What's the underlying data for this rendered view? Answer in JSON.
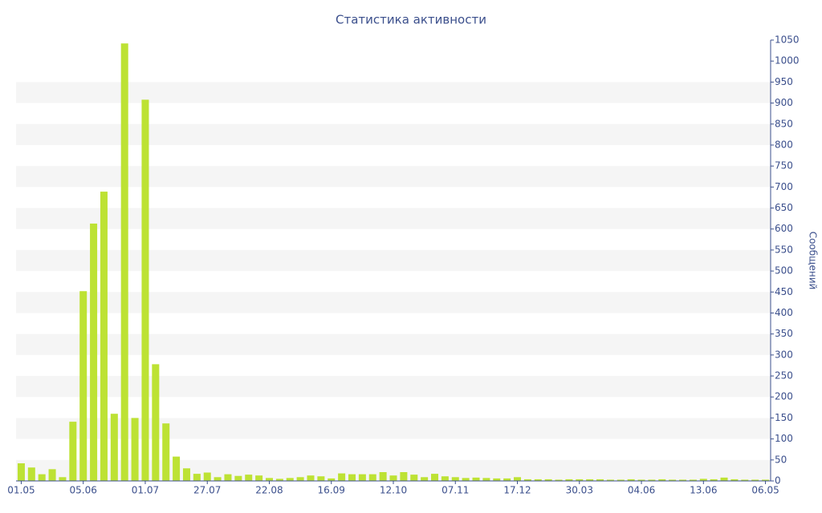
{
  "chart_data": {
    "type": "bar",
    "title": "Статистика активности",
    "y_label": "Сообщений",
    "categories": [
      "01.05",
      null,
      null,
      null,
      null,
      null,
      "05.06",
      null,
      null,
      null,
      null,
      null,
      "01.07",
      null,
      null,
      null,
      null,
      null,
      "27.07",
      null,
      null,
      null,
      null,
      null,
      "22.08",
      null,
      null,
      null,
      null,
      null,
      "16.09",
      null,
      null,
      null,
      null,
      null,
      "12.10",
      null,
      null,
      null,
      null,
      null,
      "07.11",
      null,
      null,
      null,
      null,
      null,
      "17.12",
      null,
      null,
      null,
      null,
      null,
      "30.03",
      null,
      null,
      null,
      null,
      null,
      "04.06",
      null,
      null,
      null,
      null,
      null,
      "13.06",
      null,
      null,
      null,
      null,
      null,
      "06.05"
    ],
    "values": [
      42,
      32,
      16,
      28,
      9,
      141,
      452,
      613,
      689,
      160,
      1042,
      150,
      908,
      278,
      137,
      58,
      30,
      17,
      20,
      9,
      16,
      12,
      15,
      13,
      7,
      5,
      7,
      9,
      13,
      11,
      6,
      18,
      16,
      16,
      16,
      21,
      13,
      21,
      15,
      9,
      17,
      11,
      9,
      7,
      8,
      7,
      6,
      6,
      9,
      4,
      4,
      4,
      3,
      4,
      4,
      4,
      4,
      3,
      3,
      4,
      3,
      3,
      4,
      3,
      3,
      3,
      5,
      4,
      8,
      4,
      3,
      3,
      3
    ],
    "color": "#bde234",
    "ylim": [
      0,
      1050
    ],
    "yticks": [
      0,
      50,
      100,
      150,
      200,
      250,
      300,
      350,
      400,
      450,
      500,
      550,
      600,
      650,
      700,
      750,
      800,
      850,
      900,
      950,
      1000,
      1050
    ],
    "grid": true,
    "y_axis_side": "right"
  }
}
